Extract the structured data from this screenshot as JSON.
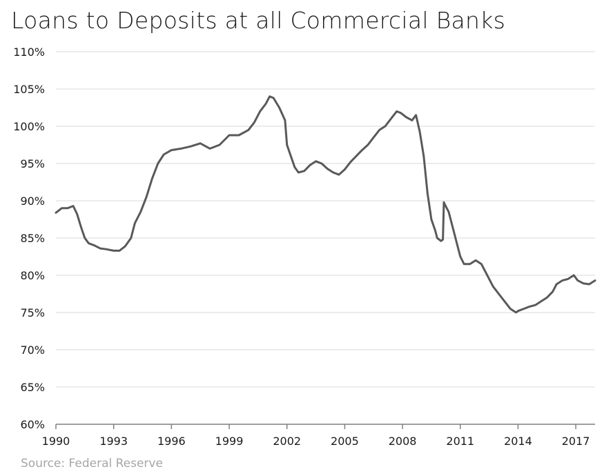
{
  "title": "Loans to Deposits at all Commercial Banks",
  "source": "Source: Federal Reserve",
  "colors": {
    "line": "#595959",
    "grid": "#d9d9d9",
    "axis": "#7f7f7f",
    "text": "#1a1a1a",
    "source": "#a6a6a6"
  },
  "chart_data": {
    "type": "line",
    "title": "Loans to Deposits at all Commercial Banks",
    "xlabel": "",
    "ylabel": "",
    "xlim": [
      1990,
      2018.0
    ],
    "ylim": [
      60,
      110
    ],
    "grid": true,
    "legend": "none",
    "x_ticks": [
      1990,
      1993,
      1996,
      1999,
      2002,
      2005,
      2008,
      2011,
      2014,
      2017
    ],
    "x_tick_labels": [
      "1990",
      "1993",
      "1996",
      "1999",
      "2002",
      "2005",
      "2008",
      "2011",
      "2014",
      "2017"
    ],
    "y_ticks": [
      60,
      65,
      70,
      75,
      80,
      85,
      90,
      95,
      100,
      105,
      110
    ],
    "y_tick_labels": [
      "60%",
      "65%",
      "70%",
      "75%",
      "80%",
      "85%",
      "90%",
      "95%",
      "100%",
      "105%",
      "110%"
    ],
    "series": [
      {
        "x": [
          1990.0,
          1990.3,
          1990.6,
          1990.9,
          1991.1,
          1991.3,
          1991.5,
          1991.7,
          1992.0,
          1992.3,
          1992.6,
          1993.0,
          1993.3,
          1993.6,
          1993.9,
          1994.1,
          1994.4,
          1994.7,
          1995.0,
          1995.3,
          1995.6,
          1996.0,
          1996.5,
          1997.0,
          1997.5,
          1998.0,
          1998.5,
          1999.0,
          1999.5,
          2000.0,
          2000.3,
          2000.6,
          2000.9,
          2001.1,
          2001.3,
          2001.6,
          2001.9,
          2002.0,
          2002.2,
          2002.4,
          2002.6,
          2002.9,
          2003.2,
          2003.5,
          2003.8,
          2004.1,
          2004.4,
          2004.7,
          2005.0,
          2005.3,
          2005.6,
          2005.9,
          2006.2,
          2006.5,
          2006.8,
          2007.1,
          2007.4,
          2007.7,
          2007.9,
          2008.2,
          2008.5,
          2008.7,
          2008.9,
          2009.1,
          2009.3,
          2009.5,
          2009.7,
          2009.8,
          2010.0,
          2010.1,
          2010.15,
          2010.2,
          2010.4,
          2010.6,
          2010.8,
          2011.0,
          2011.2,
          2011.5,
          2011.8,
          2012.1,
          2012.4,
          2012.7,
          2013.0,
          2013.3,
          2013.6,
          2013.9,
          2014.0,
          2014.3,
          2014.6,
          2014.9,
          2015.2,
          2015.5,
          2015.8,
          2016.0,
          2016.3,
          2016.6,
          2016.9,
          2017.1,
          2017.4,
          2017.7,
          2018.0
        ],
        "values": [
          88.4,
          89.0,
          89.0,
          89.3,
          88.2,
          86.5,
          85.0,
          84.3,
          84.0,
          83.6,
          83.5,
          83.3,
          83.3,
          83.9,
          85.0,
          87.0,
          88.5,
          90.5,
          93.0,
          95.0,
          96.2,
          96.8,
          97.0,
          97.3,
          97.7,
          97.0,
          97.5,
          98.8,
          98.8,
          99.5,
          100.5,
          102.0,
          103.0,
          104.0,
          103.8,
          102.5,
          100.8,
          97.5,
          96.0,
          94.5,
          93.8,
          94.0,
          94.8,
          95.3,
          95.0,
          94.3,
          93.8,
          93.5,
          94.2,
          95.2,
          96.0,
          96.8,
          97.5,
          98.5,
          99.5,
          100.0,
          101.0,
          102.0,
          101.8,
          101.2,
          100.8,
          101.5,
          99.2,
          96.0,
          91.0,
          87.5,
          86.0,
          85.0,
          84.6,
          84.8,
          89.8,
          89.5,
          88.5,
          86.5,
          84.5,
          82.5,
          81.5,
          81.5,
          82.0,
          81.5,
          80.0,
          78.5,
          77.5,
          76.5,
          75.5,
          75.0,
          75.2,
          75.5,
          75.8,
          76.0,
          76.5,
          77.0,
          77.8,
          78.8,
          79.3,
          79.5,
          80.0,
          79.3,
          78.9,
          78.8,
          79.3
        ]
      }
    ]
  }
}
